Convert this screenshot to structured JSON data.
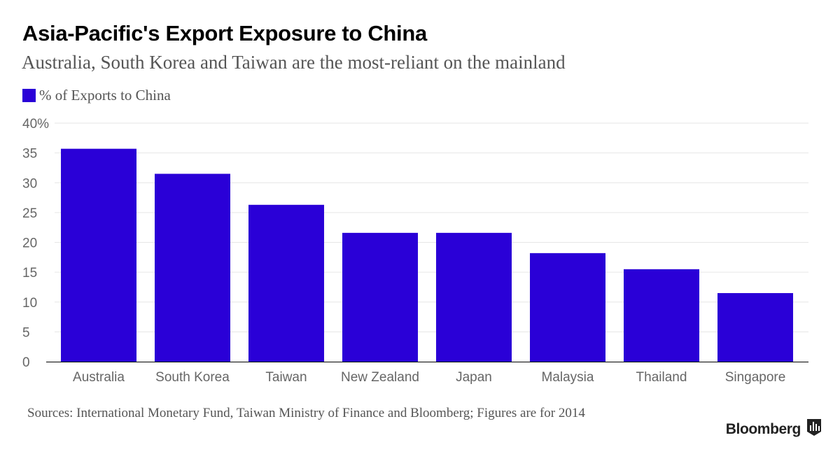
{
  "chart_data": {
    "type": "bar",
    "title": "Asia-Pacific's Export Exposure to China",
    "subtitle": "Australia, South Korea and Taiwan are the most-reliant on the mainland",
    "categories": [
      "Australia",
      "South Korea",
      "Taiwan",
      "New Zealand",
      "Japan",
      "Malaysia",
      "Thailand",
      "Singapore"
    ],
    "series": [
      {
        "name": "% of Exports to China",
        "values": [
          35.7,
          31.5,
          26.3,
          21.6,
          21.6,
          18.2,
          15.5,
          11.5
        ]
      }
    ],
    "ylim": [
      0,
      40
    ],
    "yticks": [
      0,
      5,
      10,
      15,
      20,
      25,
      30,
      35,
      40
    ],
    "ytick_labels": [
      "0",
      "5",
      "10",
      "15",
      "20",
      "25",
      "30",
      "35",
      "40%"
    ],
    "xlabel": "",
    "ylabel": "",
    "grid": true,
    "legend_position": "top-left",
    "bar_color": "#2a00d7",
    "grid_color": "#e6e6e6",
    "axis_color": "#000000",
    "tick_label_color": "#666666"
  },
  "source": "Sources: International Monetary Fund, Taiwan Ministry of Finance and Bloomberg; Figures are for 2014",
  "brand": {
    "name": "Bloomberg",
    "icon": "bloomberg-bars-icon"
  }
}
